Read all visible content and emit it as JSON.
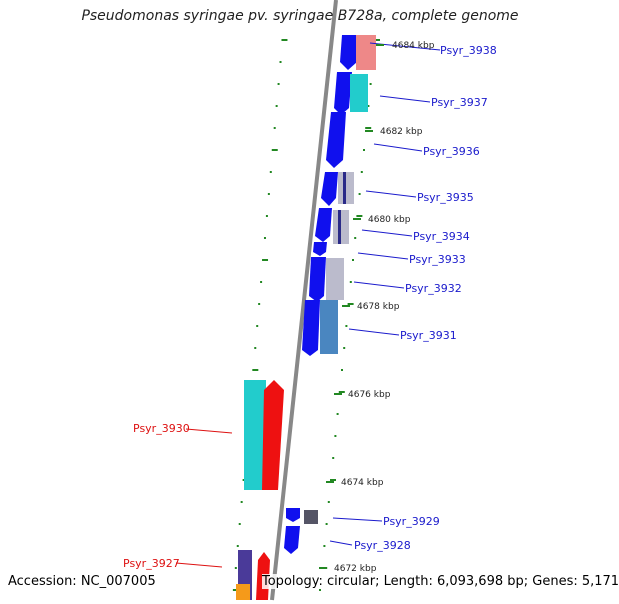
{
  "title": "Pseudomonas syringae pv. syringae B728a, complete genome",
  "footer": {
    "accession": "Accession: NC_007005",
    "summary": "Topology: circular; Length: 6,093,698 bp; Genes: 5,171"
  },
  "colors": {
    "blue": "#1010ee",
    "cyan": "#22cccc",
    "red": "#ee1111",
    "pink": "#ee8888",
    "gray": "#bbbbcc",
    "steel": "#4a86c0",
    "navy": "#2a2a88",
    "tick": "#228822",
    "label_blue": "#1a1acc",
    "label_red": "#dd1111"
  },
  "scale_labels": [
    "4684 kbp",
    "4682 kbp",
    "4680 kbp",
    "4678 kbp",
    "4676 kbp",
    "4674 kbp",
    "4672 kbp"
  ],
  "gene_labels": [
    {
      "text": "Psyr_3938",
      "color": "blue"
    },
    {
      "text": "Psyr_3937",
      "color": "blue"
    },
    {
      "text": "Psyr_3936",
      "color": "blue"
    },
    {
      "text": "Psyr_3935",
      "color": "blue"
    },
    {
      "text": "Psyr_3934",
      "color": "blue"
    },
    {
      "text": "Psyr_3933",
      "color": "blue"
    },
    {
      "text": "Psyr_3932",
      "color": "blue"
    },
    {
      "text": "Psyr_3931",
      "color": "blue"
    },
    {
      "text": "Psyr_3930",
      "color": "red"
    },
    {
      "text": "Psyr_3929",
      "color": "blue"
    },
    {
      "text": "Psyr_3928",
      "color": "blue"
    },
    {
      "text": "Psyr_3927",
      "color": "red"
    }
  ]
}
